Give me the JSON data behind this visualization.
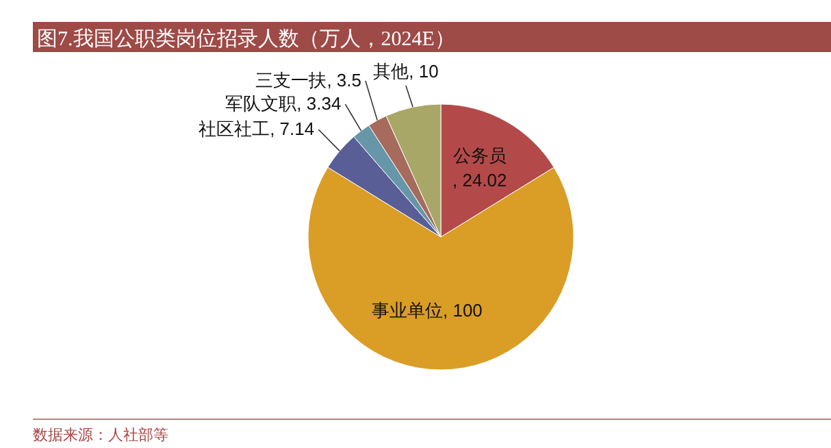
{
  "chart_data": {
    "type": "pie",
    "title": "图7.我国公职类岗位招录人数（万人，2024E）",
    "categories": [
      "公务员",
      "事业单位",
      "社区社工",
      "军队文职",
      "三支一扶",
      "其他"
    ],
    "values": [
      24.02,
      100,
      7.14,
      3.34,
      3.5,
      10
    ],
    "colors": [
      "#b34a49",
      "#da9d26",
      "#5a5e97",
      "#6696a8",
      "#a66b5c",
      "#a8a767"
    ],
    "value_labels": [
      ", 24.02",
      ", 100",
      ", 7.14",
      ", 3.34",
      ", 3.5",
      ", 10"
    ],
    "annotations": [
      "数据来源：人社部等"
    ]
  }
}
